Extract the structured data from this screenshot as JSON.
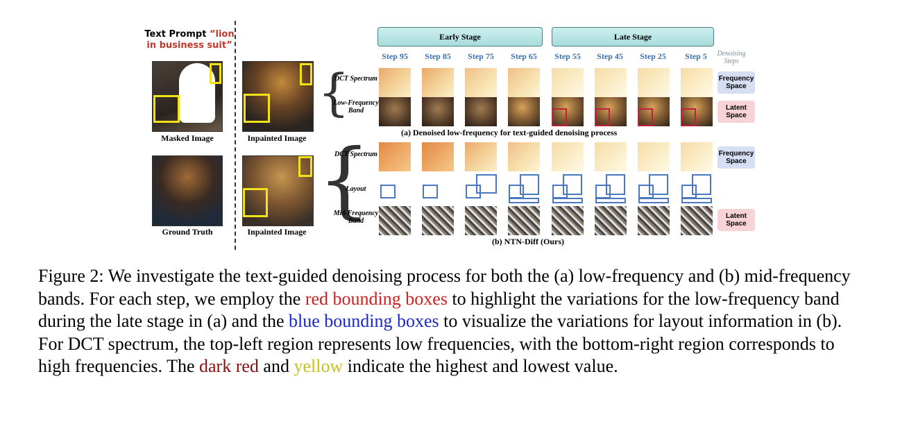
{
  "prompt": {
    "prefix": "Text Prompt ",
    "quote": "“lion in business suit”"
  },
  "left_captions": {
    "masked": "Masked Image",
    "inpainted_top": "Inpainted Image",
    "ground_truth": "Ground Truth",
    "inpainted_bottom": "Inpainted Image"
  },
  "stages": {
    "early": "Early Stage",
    "late": "Late Stage"
  },
  "steps": [
    "Step 95",
    "Step 85",
    "Step 75",
    "Step 65",
    "Step 55",
    "Step 45",
    "Step 25",
    "Step 5"
  ],
  "denoising_label": "Denoising Steps",
  "rows_a": [
    "DCT Spectrum",
    "Low-Frequency Band"
  ],
  "rows_b": [
    "DCT Spectrum",
    "Layout",
    "Mid-Frequency Band"
  ],
  "tags": {
    "freq": "Frequency Space",
    "latent": "Latent Space"
  },
  "subcaption_a": "(a) Denoised low-frequency for text-guided denoising process",
  "subcaption_b": "(b) NTN-Diff (Ours)",
  "figure_caption": {
    "p1": "Figure 2: We investigate the text-guided denoising process for both the (a) low-frequency and (b) mid-frequency bands. For each step, we employ the ",
    "red_phrase": "red bounding boxes",
    "p2": " to highlight the variations for the low-frequency band during the late stage in (a) and the ",
    "blue_phrase": "blue bounding boxes",
    "p3": " to visualize the variations for layout information in (b). For DCT spectrum, the top-left region represents low frequencies, with the bottom-right region corresponds to high frequencies. The ",
    "dark_red_word": "dark red",
    "p4": " and ",
    "yellow_word": "yellow",
    "p5": " indicate the highest and lowest value."
  },
  "colors": {
    "accent_red": "#d02020",
    "accent_blue": "#1b28c8",
    "dark_red": "#8a1010",
    "yellow": "#c8c020",
    "step_blue": "#3a6fb0"
  }
}
